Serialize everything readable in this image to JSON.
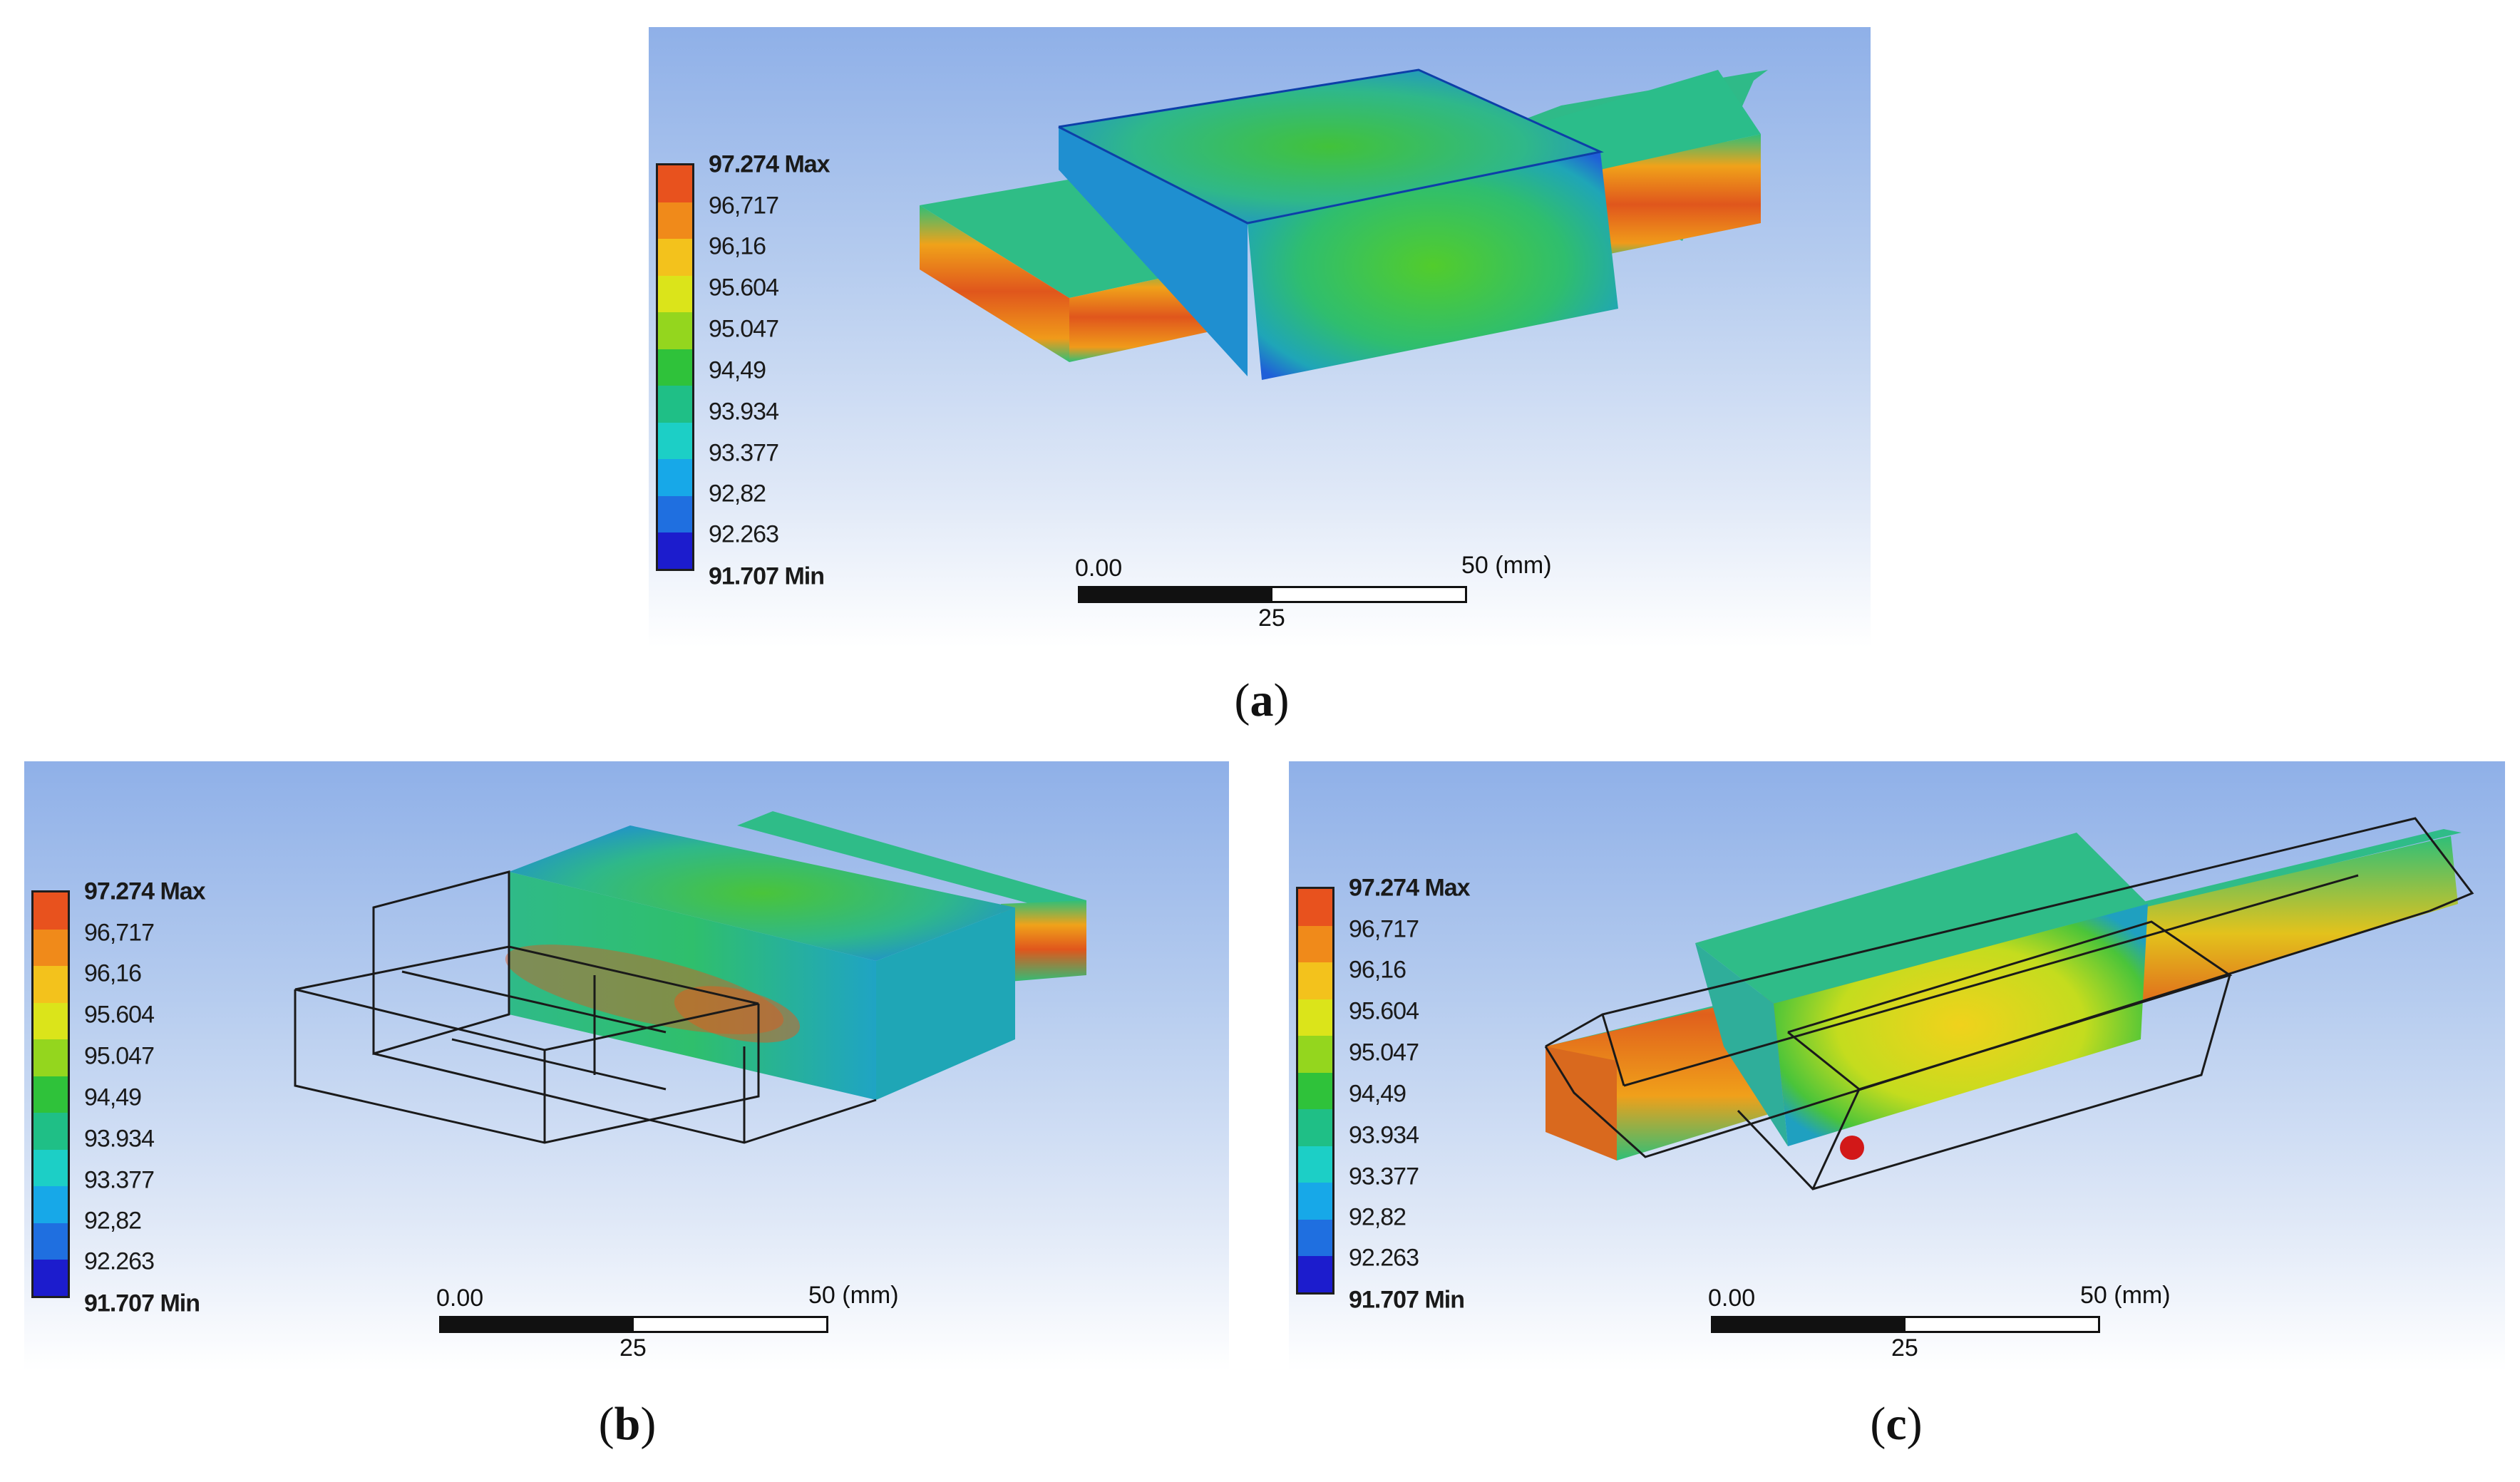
{
  "legend": {
    "max_label": "97.274 Max",
    "min_label": "91.707 Min",
    "levels": [
      "96,717",
      "96,16",
      "95.604",
      "95.047",
      "94,49",
      "93.934",
      "93.377",
      "92,82",
      "92.263"
    ],
    "colors": [
      "#e8521e",
      "#f08a1a",
      "#f3c21c",
      "#dbe41a",
      "#94d61e",
      "#2fc23a",
      "#1fbf86",
      "#1ccfc6",
      "#17a8e8",
      "#1f6fe0",
      "#1c1ccd"
    ]
  },
  "scale": {
    "start": "0.00",
    "end": "50",
    "unit": "(mm)",
    "mid": "25"
  },
  "panels": [
    {
      "id": "a",
      "caption_open": "(",
      "caption_letter": "a",
      "caption_close": ")"
    },
    {
      "id": "b",
      "caption_open": "(",
      "caption_letter": "b",
      "caption_close": ")"
    },
    {
      "id": "c",
      "caption_open": "(",
      "caption_letter": "c",
      "caption_close": ")"
    }
  ]
}
